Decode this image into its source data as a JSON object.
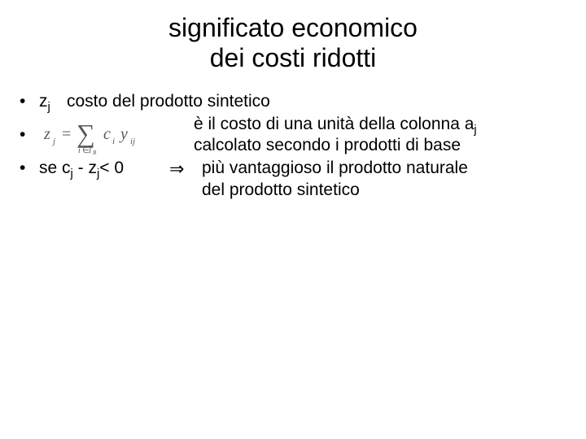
{
  "title_line1": "significato economico",
  "title_line2": "dei costi ridotti",
  "bullet_char": "•",
  "row1": {
    "var": "z",
    "sub": "j",
    "text": "costo del prodotto sintetico"
  },
  "row2": {
    "formula": {
      "lhs_var": "z",
      "lhs_sub": "j",
      "eq": "=",
      "sum_sym": "∑",
      "sum_sub_left": "i",
      "sum_sub_in": "∈",
      "sum_sub_right_var": "I",
      "sum_sub_right_sub": "B",
      "c_var": "c",
      "c_sub": "i",
      "y_var": "y",
      "y_sub": "ij"
    },
    "text_line1_a": "è il costo di una unità della  colonna a",
    "text_line1_sub": "j",
    "text_line2": "calcolato secondo i prodotti di base"
  },
  "row3": {
    "cond_a": "se c",
    "cond_sub1": "j",
    "cond_b": " - z",
    "cond_sub2": "j",
    "cond_c": "< 0",
    "arrow": "⇒",
    "text_line1": "più vantaggioso il prodotto naturale",
    "text_line2": "del prodotto sintetico"
  },
  "colors": {
    "text": "#000000",
    "background": "#ffffff",
    "formula_gray": "#5a5a5a"
  }
}
